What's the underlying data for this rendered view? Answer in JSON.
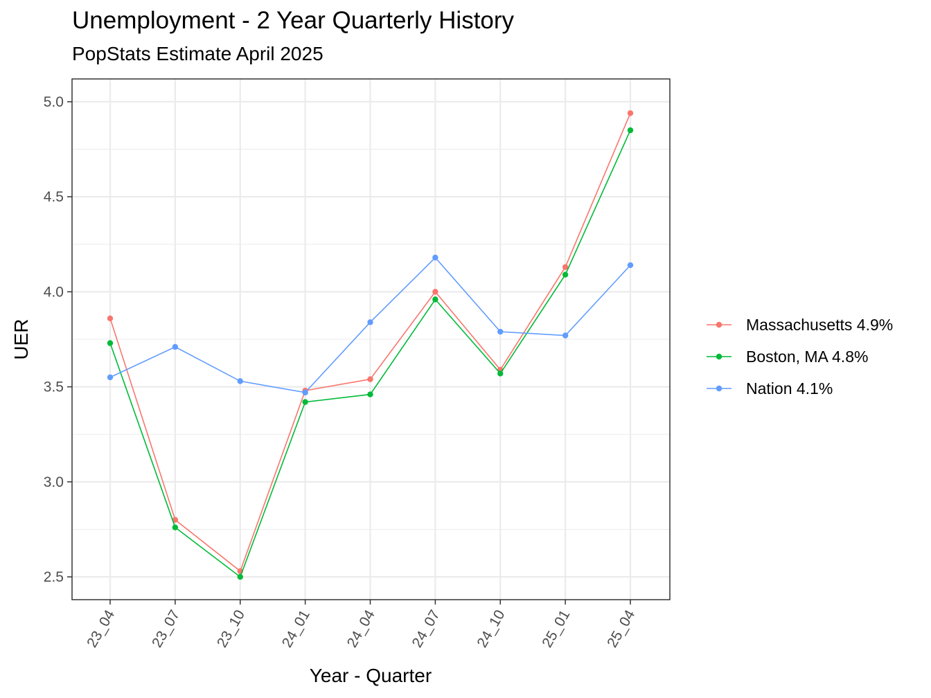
{
  "chart_data": {
    "type": "line",
    "title": "Unemployment - 2 Year Quarterly History",
    "subtitle": "PopStats Estimate April 2025",
    "xlabel": "Year - Quarter",
    "ylabel": "UER",
    "categories": [
      "23_04",
      "23_07",
      "23_10",
      "24_01",
      "24_04",
      "24_07",
      "24_10",
      "25_01",
      "25_04"
    ],
    "ylim": [
      2.38,
      5.12
    ],
    "yticks": [
      2.5,
      3.0,
      3.5,
      4.0,
      4.5,
      5.0
    ],
    "ytick_labels": [
      "2.5",
      "3.0",
      "3.5",
      "4.0",
      "4.5",
      "5.0"
    ],
    "grid": true,
    "legend_position": "right",
    "series": [
      {
        "name": "Massachusetts 4.9%",
        "color": "#F8766D",
        "values": [
          3.86,
          2.8,
          2.53,
          3.48,
          3.54,
          4.0,
          3.59,
          4.13,
          4.94
        ]
      },
      {
        "name": "Boston, MA 4.8%",
        "color": "#00BA38",
        "values": [
          3.73,
          2.76,
          2.5,
          3.42,
          3.46,
          3.96,
          3.57,
          4.09,
          4.85
        ]
      },
      {
        "name": "Nation 4.1%",
        "color": "#619CFF",
        "values": [
          3.55,
          3.71,
          3.53,
          3.47,
          3.84,
          4.18,
          3.79,
          3.77,
          4.14
        ]
      }
    ]
  }
}
